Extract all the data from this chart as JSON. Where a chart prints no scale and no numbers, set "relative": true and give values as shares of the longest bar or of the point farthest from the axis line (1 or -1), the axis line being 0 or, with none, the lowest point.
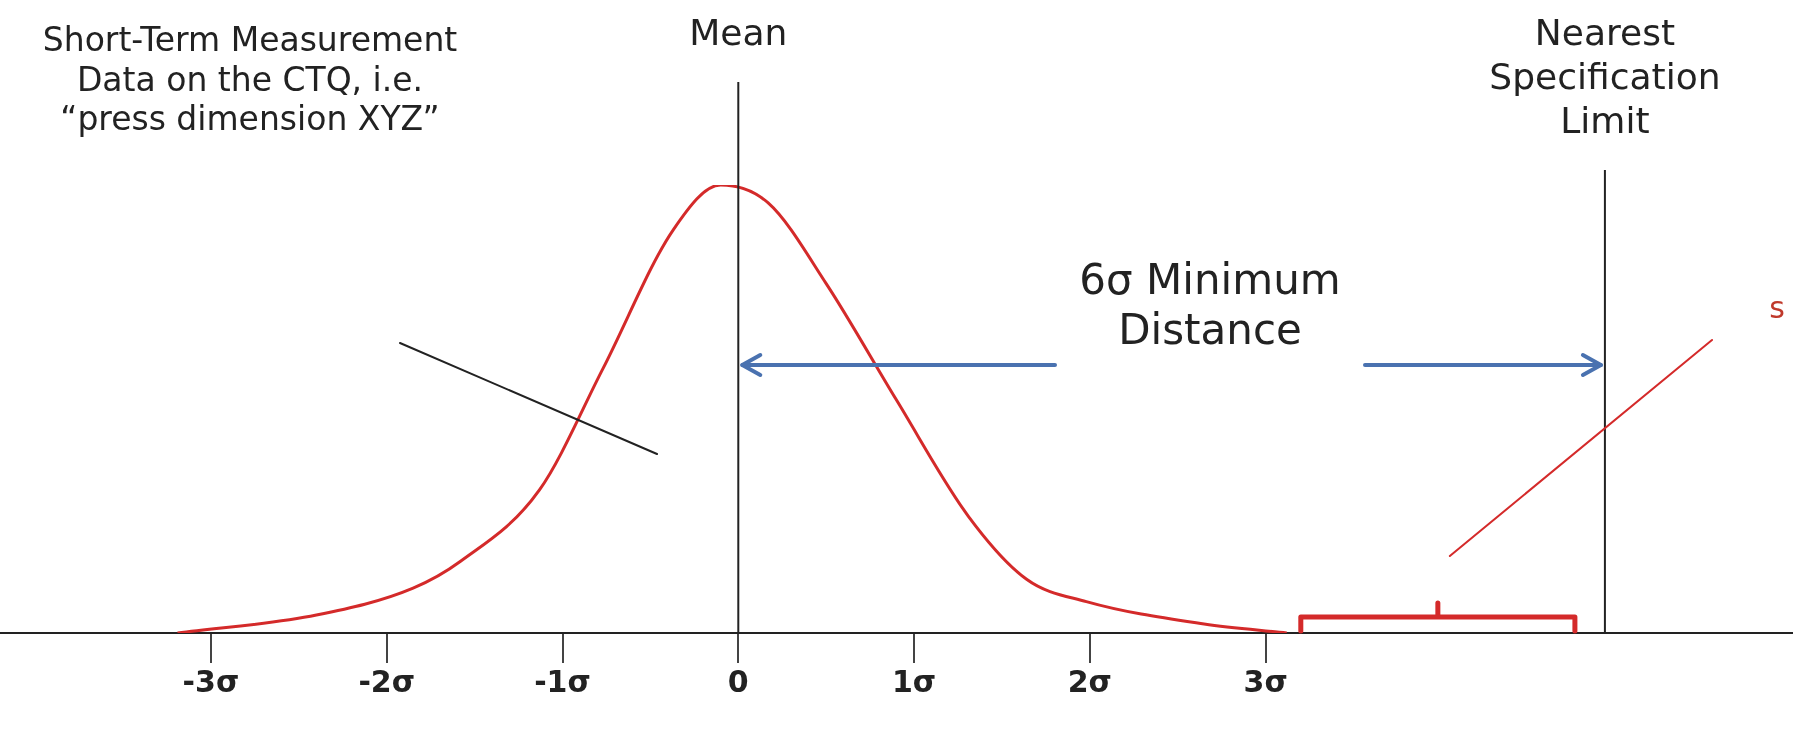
{
  "chart_data": {
    "type": "line",
    "relative": true,
    "x": [
      -3.19,
      -2.4,
      -1.85,
      -1.58,
      -1.13,
      -0.77,
      -0.37,
      -0.1,
      0.17,
      0.5,
      0.9,
      1.31,
      1.64,
      1.98,
      2.65,
      3.12
    ],
    "series": [
      {
        "color": "#d42a2a",
        "values": [
          0,
          0.04,
          0.1,
          0.16,
          0.32,
          0.59,
          0.9,
          1,
          0.96,
          0.78,
          0.52,
          0.26,
          0.12,
          0.07,
          0.02,
          0
        ]
      }
    ],
    "xlim": [
      -4.2,
      6.0
    ],
    "xticks": [
      {
        "value": -3,
        "label": "-3σ"
      },
      {
        "value": -2,
        "label": "-2σ"
      },
      {
        "value": -1,
        "label": "-1σ"
      },
      0,
      {
        "value": 1,
        "label": "1σ"
      },
      {
        "value": 2,
        "label": "2σ"
      },
      {
        "value": 3,
        "label": "3σ"
      }
    ],
    "ref_lines": [
      {
        "axis": "x",
        "value": 0,
        "label": "Mean",
        "color": "#222222"
      },
      {
        "axis": "x",
        "value": 4.93,
        "label": "Nearest Specification Limit",
        "color": "#222222"
      }
    ],
    "annotations": [
      "Short-Term Measurement Data on the CTQ, i.e. “press dimension XYZ”",
      "6σ Minimum Distance",
      "s"
    ],
    "grid": false,
    "legend": false,
    "marker": "none",
    "line_style": "solid"
  }
}
